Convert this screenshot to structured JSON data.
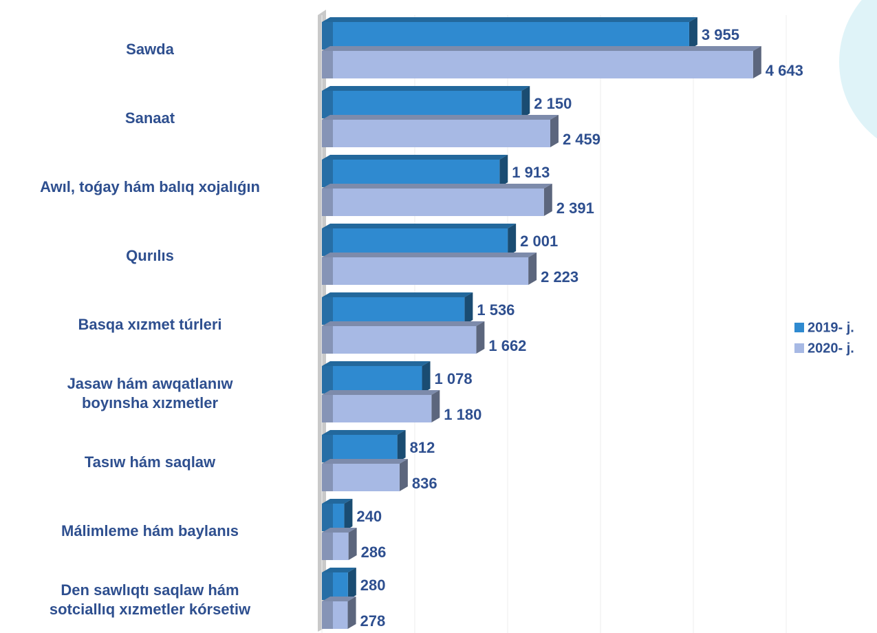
{
  "chart_data": {
    "type": "bar",
    "orientation": "horizontal",
    "categories": [
      "Sawda",
      "Sanaat",
      "Awıl, toǵay hám balıq xojalıǵın",
      "Qurılıs",
      "Basqa xızmet túrleri",
      "Jasaw hám awqatlanıw\nboyınsha xızmetler",
      "Tasıw hám saqlaw",
      "Málimleme hám baylanıs",
      "Den sawlıqtı saqlaw hám\nsotciallıq xızmetler kórsetiw"
    ],
    "series": [
      {
        "name": "2019- j.",
        "color": "#2f8ad0",
        "values": [
          3955,
          2150,
          1913,
          2001,
          1536,
          1078,
          812,
          240,
          280
        ],
        "value_labels": [
          "3 955",
          "2 150",
          "1 913",
          "2 001",
          "1 536",
          "1 078",
          "812",
          "240",
          "280"
        ]
      },
      {
        "name": "2020- j.",
        "color": "#a7b9e4",
        "values": [
          4643,
          2459,
          2391,
          2223,
          1662,
          1180,
          836,
          286,
          278
        ],
        "value_labels": [
          "4 643",
          "2 459",
          "2 391",
          "2 223",
          "1 662",
          "1 180",
          "836",
          "286",
          "278"
        ]
      }
    ],
    "xlim": [
      0,
      5000
    ],
    "xticks": [
      0,
      1000,
      2000,
      3000,
      4000,
      5000
    ],
    "grid": true,
    "legend": "right"
  }
}
